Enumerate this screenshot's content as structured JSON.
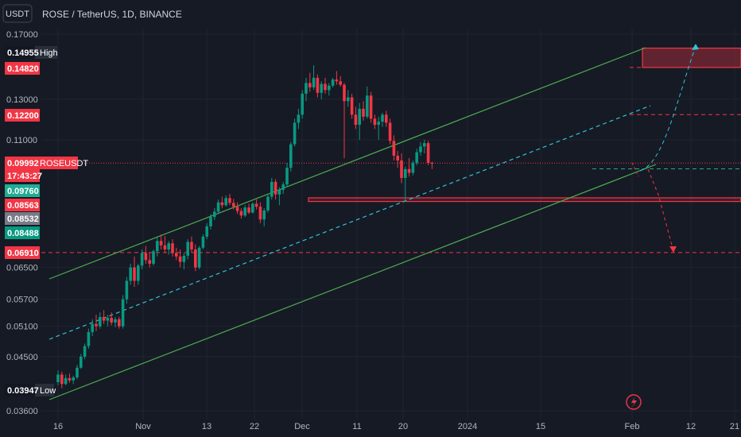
{
  "header": {
    "currency_button": "USDT",
    "symbol_title": "ROSE / TetherUS, 1D, BINANCE"
  },
  "chart_data": {
    "type": "candlestick",
    "symbol": "ROSEUSDT",
    "x_tick_labels": [
      "16",
      "Nov",
      "13",
      "22",
      "Dec",
      "11",
      "20",
      "2024",
      "15",
      "Feb",
      "12",
      "21"
    ],
    "y_tick_labels": [
      "0.17000",
      "0.13000",
      "0.11000",
      "0.06500",
      "0.05700",
      "0.05100",
      "0.04500",
      "0.03600"
    ],
    "y_ticks": [
      0.17,
      0.13,
      0.11,
      0.065,
      0.057,
      0.051,
      0.045,
      0.036
    ],
    "y_scale": "log",
    "ylim": [
      0.0355,
      0.185
    ],
    "price_tags": [
      {
        "value": "0.14955",
        "label": "High",
        "kind": "high",
        "value_num": 0.14955
      },
      {
        "value": "0.14820",
        "label": "",
        "kind": "red",
        "value_num": 0.1482
      },
      {
        "value": "0.12200",
        "label": "",
        "kind": "red",
        "value_num": 0.122
      },
      {
        "value": "0.09992",
        "label": "ROSEUSDT",
        "kind": "last",
        "value_num": 0.09992
      },
      {
        "value": "17:43:27",
        "label": "",
        "kind": "countdown",
        "value_num": 0.09992
      },
      {
        "value": "0.09760",
        "label": "",
        "kind": "cyan",
        "value_num": 0.0976
      },
      {
        "value": "0.08563",
        "label": "",
        "kind": "red",
        "value_num": 0.08563
      },
      {
        "value": "0.08532",
        "label": "",
        "kind": "gray",
        "value_num": 0.08532
      },
      {
        "value": "0.08488",
        "label": "",
        "kind": "green",
        "value_num": 0.08488
      },
      {
        "value": "0.06910",
        "label": "",
        "kind": "red",
        "value_num": 0.0691
      },
      {
        "value": "0.03947",
        "label": "Low",
        "kind": "low",
        "value_num": 0.03947
      }
    ],
    "horizontal_levels": [
      {
        "price": 0.1482,
        "style": "dashed",
        "color": "#f23645"
      },
      {
        "price": 0.122,
        "style": "dashed",
        "color": "#f23645"
      },
      {
        "price": 0.09992,
        "style": "dotted",
        "color": "#f23645"
      },
      {
        "price": 0.0976,
        "style": "dashed",
        "color": "#22ab94"
      },
      {
        "price": 0.0691,
        "style": "dashed",
        "color": "#f23645"
      }
    ],
    "zones": [
      {
        "top": 0.1605,
        "bottom": 0.1482,
        "color": "#f23645"
      },
      {
        "top": 0.0866,
        "bottom": 0.0853,
        "color": "#f23645"
      }
    ],
    "candles": [
      [
        0.0405,
        0.0425,
        0.04,
        0.0418
      ],
      [
        0.0418,
        0.0423,
        0.0395,
        0.0402
      ],
      [
        0.0402,
        0.0418,
        0.04,
        0.0412
      ],
      [
        0.0412,
        0.042,
        0.0404,
        0.0408
      ],
      [
        0.0408,
        0.0416,
        0.0402,
        0.0413
      ],
      [
        0.0413,
        0.0435,
        0.041,
        0.043
      ],
      [
        0.043,
        0.0455,
        0.0428,
        0.045
      ],
      [
        0.045,
        0.0475,
        0.0445,
        0.047
      ],
      [
        0.047,
        0.0505,
        0.0465,
        0.0498
      ],
      [
        0.0498,
        0.0525,
        0.049,
        0.0515
      ],
      [
        0.0515,
        0.0535,
        0.05,
        0.051
      ],
      [
        0.051,
        0.054,
        0.0505,
        0.053
      ],
      [
        0.053,
        0.0545,
        0.0515,
        0.0522
      ],
      [
        0.0522,
        0.0535,
        0.051,
        0.0528
      ],
      [
        0.0528,
        0.054,
        0.0512,
        0.0518
      ],
      [
        0.0518,
        0.053,
        0.0508,
        0.0525
      ],
      [
        0.0525,
        0.053,
        0.0505,
        0.051
      ],
      [
        0.051,
        0.058,
        0.0505,
        0.057
      ],
      [
        0.057,
        0.0625,
        0.056,
        0.0615
      ],
      [
        0.0615,
        0.066,
        0.0605,
        0.065
      ],
      [
        0.065,
        0.068,
        0.06,
        0.0615
      ],
      [
        0.0615,
        0.066,
        0.0605,
        0.0655
      ],
      [
        0.0655,
        0.07,
        0.0645,
        0.069
      ],
      [
        0.069,
        0.071,
        0.066,
        0.067
      ],
      [
        0.067,
        0.069,
        0.065,
        0.066
      ],
      [
        0.066,
        0.07,
        0.0655,
        0.0695
      ],
      [
        0.0695,
        0.0735,
        0.068,
        0.0725
      ],
      [
        0.0725,
        0.0745,
        0.07,
        0.0712
      ],
      [
        0.0712,
        0.074,
        0.069,
        0.07
      ],
      [
        0.07,
        0.0725,
        0.0685,
        0.0718
      ],
      [
        0.0718,
        0.073,
        0.068,
        0.069
      ],
      [
        0.069,
        0.0705,
        0.067,
        0.068
      ],
      [
        0.068,
        0.07,
        0.065,
        0.0665
      ],
      [
        0.0665,
        0.069,
        0.0645,
        0.0682
      ],
      [
        0.0682,
        0.073,
        0.0672,
        0.0722
      ],
      [
        0.0722,
        0.0738,
        0.069,
        0.07
      ],
      [
        0.07,
        0.0715,
        0.064,
        0.065
      ],
      [
        0.065,
        0.071,
        0.0645,
        0.0705
      ],
      [
        0.0705,
        0.0745,
        0.07,
        0.0738
      ],
      [
        0.0738,
        0.078,
        0.073,
        0.077
      ],
      [
        0.077,
        0.081,
        0.076,
        0.08
      ],
      [
        0.08,
        0.083,
        0.079,
        0.0818
      ],
      [
        0.0818,
        0.086,
        0.081,
        0.085
      ],
      [
        0.085,
        0.087,
        0.083,
        0.084
      ],
      [
        0.084,
        0.0875,
        0.0835,
        0.0865
      ],
      [
        0.0865,
        0.088,
        0.084,
        0.0848
      ],
      [
        0.0848,
        0.0862,
        0.0825,
        0.0835
      ],
      [
        0.0835,
        0.085,
        0.081,
        0.082
      ],
      [
        0.082,
        0.083,
        0.0795,
        0.0805
      ],
      [
        0.0805,
        0.084,
        0.08,
        0.0832
      ],
      [
        0.0832,
        0.0845,
        0.081,
        0.0815
      ],
      [
        0.0815,
        0.085,
        0.0812,
        0.0845
      ],
      [
        0.0845,
        0.086,
        0.0825,
        0.0835
      ],
      [
        0.0835,
        0.085,
        0.078,
        0.0792
      ],
      [
        0.0792,
        0.083,
        0.077,
        0.0822
      ],
      [
        0.0822,
        0.088,
        0.0815,
        0.087
      ],
      [
        0.087,
        0.094,
        0.086,
        0.0925
      ],
      [
        0.0925,
        0.0935,
        0.086,
        0.0878
      ],
      [
        0.0878,
        0.0905,
        0.084,
        0.0895
      ],
      [
        0.0895,
        0.0925,
        0.088,
        0.0915
      ],
      [
        0.0915,
        0.1,
        0.0905,
        0.098
      ],
      [
        0.098,
        0.109,
        0.0965,
        0.108
      ],
      [
        0.108,
        0.12,
        0.107,
        0.118
      ],
      [
        0.118,
        0.125,
        0.115,
        0.122
      ],
      [
        0.122,
        0.135,
        0.12,
        0.133
      ],
      [
        0.133,
        0.142,
        0.129,
        0.139
      ],
      [
        0.139,
        0.145,
        0.134,
        0.1365
      ],
      [
        0.1365,
        0.1496,
        0.135,
        0.142
      ],
      [
        0.142,
        0.144,
        0.131,
        0.1335
      ],
      [
        0.1335,
        0.14,
        0.13,
        0.1385
      ],
      [
        0.1385,
        0.142,
        0.133,
        0.135
      ],
      [
        0.135,
        0.139,
        0.132,
        0.1375
      ],
      [
        0.1375,
        0.142,
        0.1365,
        0.141
      ],
      [
        0.141,
        0.146,
        0.138,
        0.14
      ],
      [
        0.14,
        0.143,
        0.137,
        0.138
      ],
      [
        0.138,
        0.139,
        0.102,
        0.129
      ],
      [
        0.129,
        0.135,
        0.126,
        0.131
      ],
      [
        0.131,
        0.133,
        0.12,
        0.122
      ],
      [
        0.122,
        0.126,
        0.115,
        0.117
      ],
      [
        0.117,
        0.128,
        0.11,
        0.125
      ],
      [
        0.125,
        0.129,
        0.119,
        0.121
      ],
      [
        0.121,
        0.137,
        0.12,
        0.132
      ],
      [
        0.132,
        0.134,
        0.118,
        0.12
      ],
      [
        0.12,
        0.122,
        0.115,
        0.117
      ],
      [
        0.117,
        0.121,
        0.11,
        0.1185
      ],
      [
        0.1185,
        0.123,
        0.116,
        0.122
      ],
      [
        0.122,
        0.124,
        0.116,
        0.118
      ],
      [
        0.118,
        0.12,
        0.108,
        0.1095
      ],
      [
        0.1095,
        0.112,
        0.101,
        0.103
      ],
      [
        0.103,
        0.105,
        0.098,
        0.101
      ],
      [
        0.101,
        0.104,
        0.092,
        0.094
      ],
      [
        0.094,
        0.0985,
        0.0853,
        0.0975
      ],
      [
        0.0975,
        0.102,
        0.0945,
        0.096
      ],
      [
        0.096,
        0.101,
        0.095,
        0.1
      ],
      [
        0.1,
        0.106,
        0.099,
        0.1045
      ],
      [
        0.1045,
        0.109,
        0.103,
        0.107
      ],
      [
        0.107,
        0.11,
        0.104,
        0.1085
      ],
      [
        0.1085,
        0.1095,
        0.099,
        0.1
      ],
      [
        0.1,
        0.1005,
        0.0975,
        0.0999
      ]
    ],
    "candle_start_x": 73,
    "candle_step": 4.8,
    "trend_lines": [
      {
        "name": "channel-upper-line",
        "x1": 62,
        "y1": 351,
        "x2": 812,
        "y2": 60,
        "color": "#4caf50",
        "dash": ""
      },
      {
        "name": "channel-lower-line",
        "x1": 62,
        "y1": 503,
        "x2": 825,
        "y2": 207,
        "color": "#4caf50",
        "dash": ""
      },
      {
        "name": "channel-middle-line",
        "x1": 62,
        "y1": 427,
        "x2": 818,
        "y2": 133,
        "color": "#2ec4d6",
        "dash": "5,4"
      }
    ]
  },
  "colors": {
    "background": "#161a25",
    "bull": "#089981",
    "bear": "#f23645",
    "grid": "#1f2431",
    "axis_text": "#b2b5be"
  }
}
